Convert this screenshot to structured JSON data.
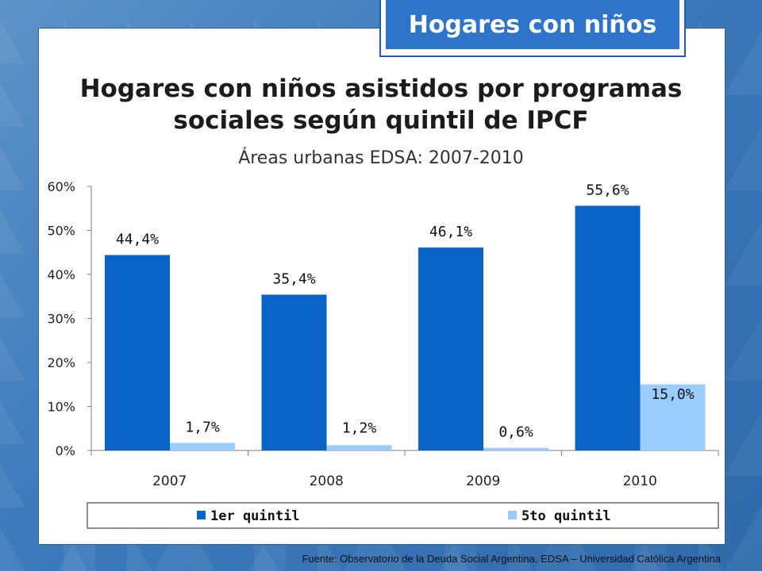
{
  "badge": {
    "label": "Hogares con niños"
  },
  "header": {
    "title_line1": "Hogares con niños asistidos por programas",
    "title_line2": "sociales según quintil de IPCF",
    "subtitle": "Áreas urbanas EDSA: 2007-2010"
  },
  "footer": {
    "source": "Fuente:  Observatorio de  la Deuda Social Argentina. EDSA – Universidad Católica Argentina"
  },
  "colors": {
    "series1": "#0a64c8",
    "series2": "#99ccff",
    "accent": "#2e74c8"
  },
  "chart_data": {
    "type": "bar",
    "categories": [
      "2007",
      "2008",
      "2009",
      "2010"
    ],
    "series": [
      {
        "name": "1er quintil",
        "values": [
          44.4,
          35.4,
          46.1,
          55.6
        ],
        "labels": [
          "44,4%",
          "35,4%",
          "46,1%",
          "55,6%"
        ]
      },
      {
        "name": "5to quintil",
        "values": [
          1.7,
          1.2,
          0.6,
          15.0
        ],
        "labels": [
          "1,7%",
          "1,2%",
          "0,6%",
          "15,0%"
        ]
      }
    ],
    "y_ticks": [
      "0%",
      "10%",
      "20%",
      "30%",
      "40%",
      "50%",
      "60%"
    ],
    "ylim": [
      0,
      60
    ],
    "grid": false,
    "legend_position": "bottom"
  }
}
